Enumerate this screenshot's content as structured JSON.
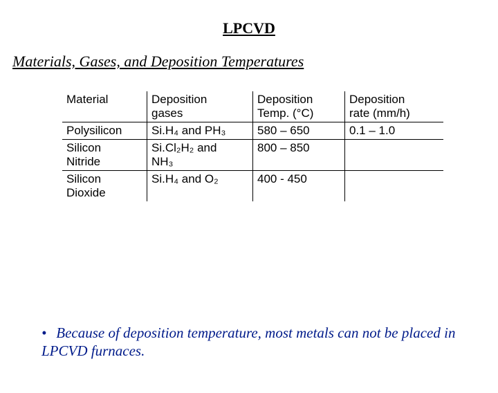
{
  "title": "LPCVD",
  "subtitle": "Materials, Gases, and Deposition Temperatures",
  "table": {
    "headers": {
      "c1": "Material",
      "c2a": "Deposition",
      "c2b": "gases",
      "c3a": "Deposition",
      "c3b": "Temp. (°C)",
      "c4a": "Deposition",
      "c4b": "rate (mm/h)"
    },
    "rows": [
      {
        "c1": "Polysilicon",
        "c2": "Si.H₄ and PH₃",
        "c3": "580 – 650",
        "c4": "0.1 – 1.0"
      },
      {
        "c1a": "Silicon",
        "c1b": "Nitride",
        "c2a": "Si.Cl₂H₂ and",
        "c2b": "NH₃",
        "c3": "800 – 850",
        "c4": ""
      },
      {
        "c1a": "Silicon",
        "c1b": "Dioxide",
        "c2": "Si.H₄ and O₂",
        "c3": "400 - 450",
        "c4": ""
      }
    ]
  },
  "note_bullet": "•",
  "note_text": "Because of deposition temperature, most metals can not be placed in LPCVD furnaces.",
  "colors": {
    "text": "#000000",
    "note": "#001b8a",
    "background": "#ffffff",
    "border": "#000000"
  }
}
